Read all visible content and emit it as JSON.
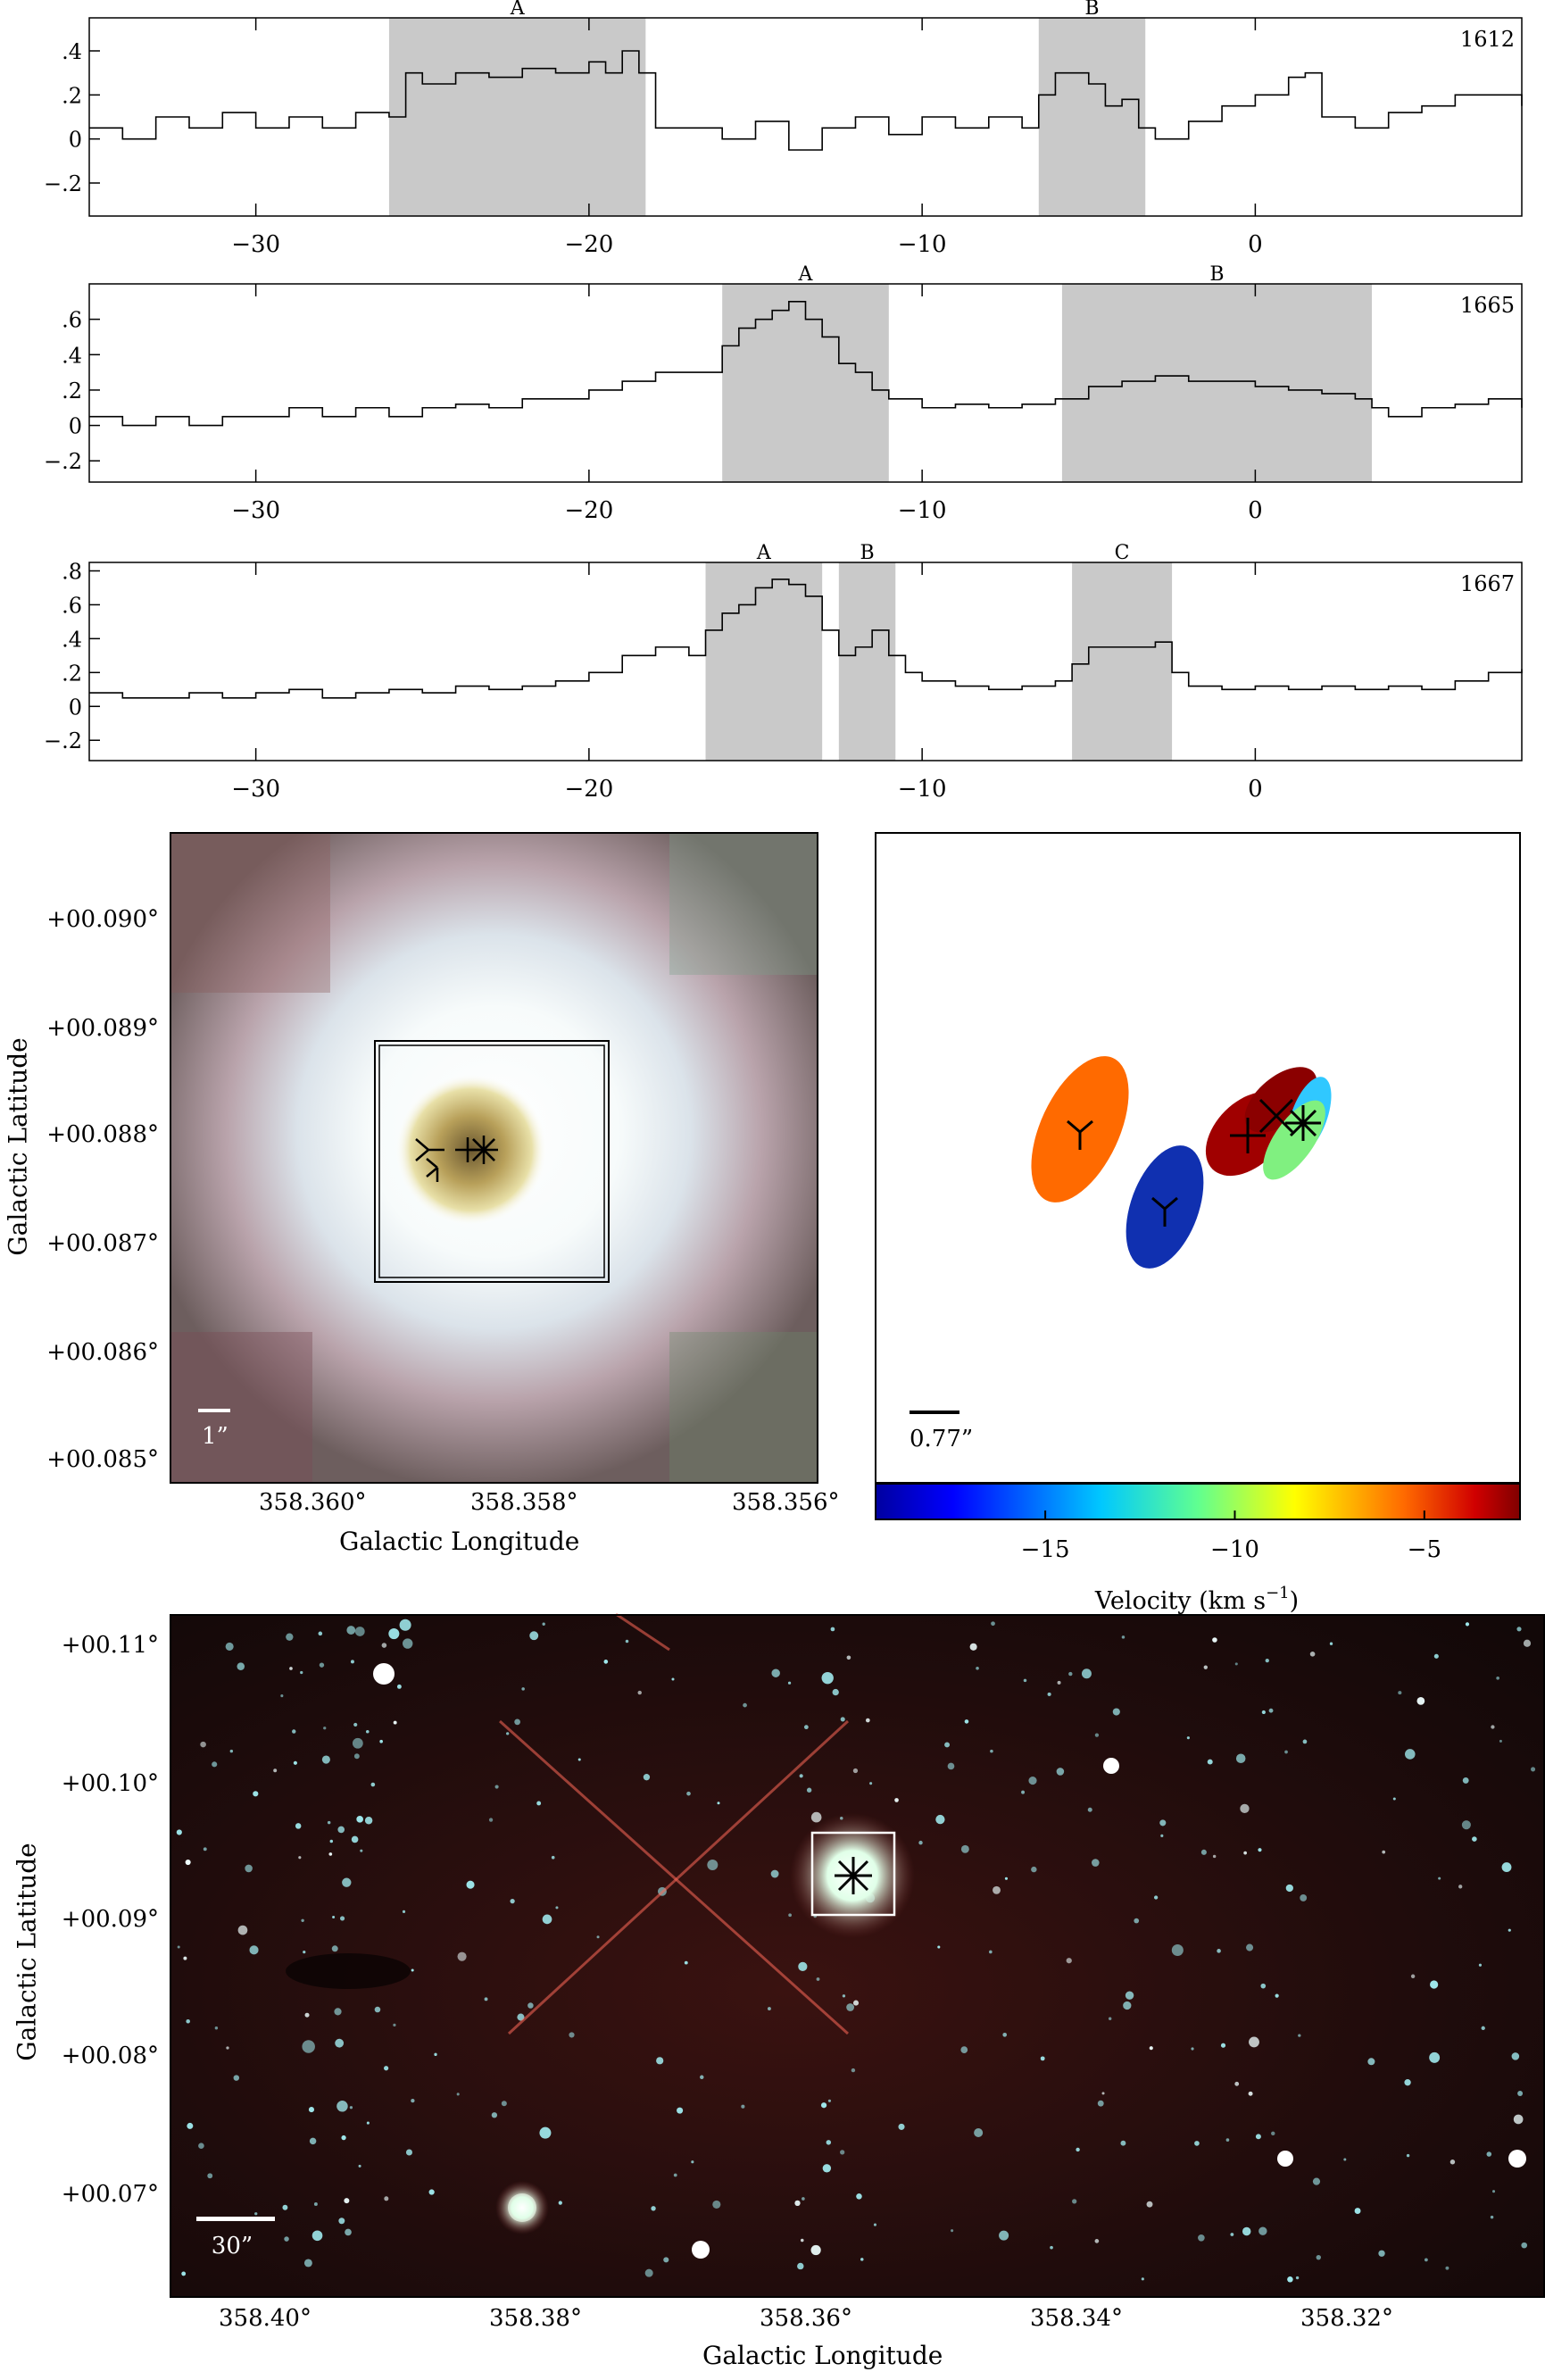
{
  "chart_data": [
    {
      "type": "line",
      "panel": "oh-1612-spectrum",
      "label": "1612",
      "xlim": [
        -35,
        8
      ],
      "ylim": [
        -0.35,
        0.55
      ],
      "xticks": [
        -30,
        -20,
        -10,
        0
      ],
      "yticks": [
        -0.2,
        0,
        0.2,
        0.4
      ],
      "regions": [
        {
          "name": "A",
          "x": [
            -26.0,
            -18.3
          ]
        },
        {
          "name": "B",
          "x": [
            -6.5,
            -3.3
          ]
        }
      ],
      "series": [
        {
          "values": [
            [
              -35,
              0.05
            ],
            [
              -34,
              0.0
            ],
            [
              -33,
              0.1
            ],
            [
              -32,
              0.05
            ],
            [
              -31,
              0.12
            ],
            [
              -30,
              0.05
            ],
            [
              -29,
              0.1
            ],
            [
              -28,
              0.05
            ],
            [
              -27,
              0.12
            ],
            [
              -26,
              0.1
            ],
            [
              -25.5,
              0.3
            ],
            [
              -25,
              0.25
            ],
            [
              -24,
              0.3
            ],
            [
              -23,
              0.28
            ],
            [
              -22,
              0.32
            ],
            [
              -21,
              0.3
            ],
            [
              -20,
              0.35
            ],
            [
              -19.5,
              0.3
            ],
            [
              -19,
              0.4
            ],
            [
              -18.5,
              0.3
            ],
            [
              -18,
              0.05
            ],
            [
              -17,
              0.05
            ],
            [
              -16,
              0.0
            ],
            [
              -15,
              0.08
            ],
            [
              -14,
              -0.05
            ],
            [
              -13,
              0.05
            ],
            [
              -12,
              0.1
            ],
            [
              -11,
              0.02
            ],
            [
              -10,
              0.1
            ],
            [
              -9,
              0.05
            ],
            [
              -8,
              0.1
            ],
            [
              -7,
              0.05
            ],
            [
              -6.5,
              0.2
            ],
            [
              -6,
              0.3
            ],
            [
              -5,
              0.25
            ],
            [
              -4.5,
              0.15
            ],
            [
              -4,
              0.18
            ],
            [
              -3.5,
              0.05
            ],
            [
              -3,
              0.0
            ],
            [
              -2,
              0.08
            ],
            [
              -1,
              0.15
            ],
            [
              0,
              0.2
            ],
            [
              1,
              0.28
            ],
            [
              1.5,
              0.3
            ],
            [
              2,
              0.1
            ],
            [
              3,
              0.05
            ],
            [
              4,
              0.12
            ],
            [
              5,
              0.15
            ],
            [
              6,
              0.2
            ],
            [
              7,
              0.2
            ],
            [
              8,
              0.15
            ]
          ]
        }
      ]
    },
    {
      "type": "line",
      "panel": "oh-1665-spectrum",
      "label": "1665",
      "xlim": [
        -35,
        8
      ],
      "ylim": [
        -0.32,
        0.8
      ],
      "xticks": [
        -30,
        -20,
        -10,
        0
      ],
      "yticks": [
        -0.2,
        0,
        0.2,
        0.4,
        0.6
      ],
      "regions": [
        {
          "name": "A",
          "x": [
            -16.0,
            -11.0
          ]
        },
        {
          "name": "B",
          "x": [
            -5.8,
            3.5
          ]
        }
      ],
      "series": [
        {
          "values": [
            [
              -35,
              0.05
            ],
            [
              -34,
              0.0
            ],
            [
              -33,
              0.05
            ],
            [
              -32,
              0.0
            ],
            [
              -31,
              0.05
            ],
            [
              -30,
              0.05
            ],
            [
              -29,
              0.1
            ],
            [
              -28,
              0.05
            ],
            [
              -27,
              0.1
            ],
            [
              -26,
              0.05
            ],
            [
              -25,
              0.1
            ],
            [
              -24,
              0.12
            ],
            [
              -23,
              0.1
            ],
            [
              -22,
              0.15
            ],
            [
              -21,
              0.15
            ],
            [
              -20,
              0.2
            ],
            [
              -19,
              0.25
            ],
            [
              -18,
              0.3
            ],
            [
              -17,
              0.3
            ],
            [
              -16.5,
              0.3
            ],
            [
              -16,
              0.45
            ],
            [
              -15.5,
              0.55
            ],
            [
              -15,
              0.6
            ],
            [
              -14.5,
              0.65
            ],
            [
              -14,
              0.7
            ],
            [
              -13.5,
              0.6
            ],
            [
              -13,
              0.5
            ],
            [
              -12.5,
              0.35
            ],
            [
              -12,
              0.3
            ],
            [
              -11.5,
              0.2
            ],
            [
              -11,
              0.15
            ],
            [
              -10,
              0.1
            ],
            [
              -9,
              0.12
            ],
            [
              -8,
              0.1
            ],
            [
              -7,
              0.12
            ],
            [
              -6,
              0.15
            ],
            [
              -5,
              0.22
            ],
            [
              -4,
              0.25
            ],
            [
              -3,
              0.28
            ],
            [
              -2,
              0.25
            ],
            [
              -1,
              0.25
            ],
            [
              0,
              0.22
            ],
            [
              1,
              0.2
            ],
            [
              2,
              0.18
            ],
            [
              3,
              0.15
            ],
            [
              3.5,
              0.1
            ],
            [
              4,
              0.05
            ],
            [
              5,
              0.1
            ],
            [
              6,
              0.12
            ],
            [
              7,
              0.15
            ],
            [
              8,
              0.1
            ]
          ]
        }
      ]
    },
    {
      "type": "line",
      "panel": "oh-1667-spectrum",
      "label": "1667",
      "xlim": [
        -35,
        8
      ],
      "ylim": [
        -0.32,
        0.85
      ],
      "xticks": [
        -30,
        -20,
        -10,
        0
      ],
      "yticks": [
        -0.2,
        0,
        0.2,
        0.4,
        0.6,
        0.8
      ],
      "regions": [
        {
          "name": "A",
          "x": [
            -16.5,
            -13.0
          ]
        },
        {
          "name": "B",
          "x": [
            -12.5,
            -10.8
          ]
        },
        {
          "name": "C",
          "x": [
            -5.5,
            -2.5
          ]
        }
      ],
      "series": [
        {
          "values": [
            [
              -35,
              0.08
            ],
            [
              -34,
              0.05
            ],
            [
              -33,
              0.05
            ],
            [
              -32,
              0.08
            ],
            [
              -31,
              0.05
            ],
            [
              -30,
              0.08
            ],
            [
              -29,
              0.1
            ],
            [
              -28,
              0.05
            ],
            [
              -27,
              0.08
            ],
            [
              -26,
              0.1
            ],
            [
              -25,
              0.08
            ],
            [
              -24,
              0.12
            ],
            [
              -23,
              0.1
            ],
            [
              -22,
              0.12
            ],
            [
              -21,
              0.15
            ],
            [
              -20,
              0.2
            ],
            [
              -19,
              0.3
            ],
            [
              -18,
              0.35
            ],
            [
              -17,
              0.3
            ],
            [
              -16.5,
              0.45
            ],
            [
              -16,
              0.55
            ],
            [
              -15.5,
              0.6
            ],
            [
              -15,
              0.7
            ],
            [
              -14.5,
              0.75
            ],
            [
              -14,
              0.72
            ],
            [
              -13.5,
              0.65
            ],
            [
              -13,
              0.45
            ],
            [
              -12.5,
              0.3
            ],
            [
              -12,
              0.35
            ],
            [
              -11.5,
              0.45
            ],
            [
              -11,
              0.3
            ],
            [
              -10.5,
              0.2
            ],
            [
              -10,
              0.15
            ],
            [
              -9,
              0.12
            ],
            [
              -8,
              0.1
            ],
            [
              -7,
              0.12
            ],
            [
              -6,
              0.15
            ],
            [
              -5.5,
              0.25
            ],
            [
              -5,
              0.35
            ],
            [
              -4,
              0.35
            ],
            [
              -3,
              0.38
            ],
            [
              -2.5,
              0.2
            ],
            [
              -2,
              0.12
            ],
            [
              -1,
              0.1
            ],
            [
              0,
              0.12
            ],
            [
              1,
              0.1
            ],
            [
              2,
              0.12
            ],
            [
              3,
              0.1
            ],
            [
              4,
              0.12
            ],
            [
              5,
              0.1
            ],
            [
              6,
              0.15
            ],
            [
              7,
              0.2
            ],
            [
              8,
              0.22
            ]
          ]
        }
      ]
    }
  ],
  "xlabel": "",
  "ylabel": "",
  "image_panel_left": {
    "ylabel": "Galactic Latitude",
    "xlabel": "Galactic Longitude",
    "yticks": [
      "+00.090°",
      "+00.089°",
      "+00.088°",
      "+00.087°",
      "+00.086°",
      "+00.085°"
    ],
    "xticks": [
      "358.360°",
      "358.358°",
      "358.356°"
    ],
    "scalebar_label": "1”"
  },
  "image_panel_right": {
    "scalebar_label": "0.77”",
    "colorbar_title": "Velocity (km s",
    "colorbar_title_sup": "−1",
    "colorbar_title_end": ")",
    "colorbar_ticks": [
      "−15",
      "−10",
      "−5"
    ],
    "colorbar_range": [
      -19.5,
      -2.5
    ],
    "ellipses": [
      {
        "velocity": -6.0,
        "color": "#ff6a00",
        "marker": "Y"
      },
      {
        "velocity": -18.0,
        "color": "#1030b0",
        "marker": "Y"
      },
      {
        "velocity": -4.0,
        "color": "#a00000",
        "marker": "+"
      },
      {
        "velocity": -3.0,
        "color": "#8b0000",
        "marker": "x"
      },
      {
        "velocity": -13.0,
        "color": "#30c8ff",
        "marker": "*"
      },
      {
        "velocity": -11.0,
        "color": "#80f080",
        "marker": "*"
      }
    ]
  },
  "image_panel_bottom": {
    "ylabel": "Galactic Latitude",
    "xlabel": "Galactic Longitude",
    "yticks": [
      "+00.11°",
      "+00.10°",
      "+00.09°",
      "+00.08°",
      "+00.07°"
    ],
    "xticks": [
      "358.40°",
      "358.38°",
      "358.36°",
      "358.34°",
      "358.32°"
    ],
    "scalebar_label": "30”"
  }
}
